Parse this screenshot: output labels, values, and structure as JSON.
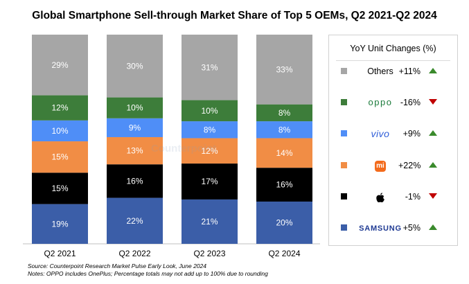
{
  "chart_data": {
    "type": "bar",
    "stacked": true,
    "title": "Global Smartphone Sell-through Market Share of Top 5 OEMs, Q2 2021-Q2 2024",
    "categories": [
      "Q2 2021",
      "Q2 2022",
      "Q2 2023",
      "Q2 2024"
    ],
    "series": [
      {
        "name": "Samsung",
        "color": "#3b5ea8",
        "values": [
          19,
          22,
          21,
          20
        ],
        "labels": [
          "19%",
          "22%",
          "21%",
          "20%"
        ]
      },
      {
        "name": "Apple",
        "color": "#000000",
        "values": [
          15,
          16,
          17,
          16
        ],
        "labels": [
          "15%",
          "16%",
          "17%",
          "16%"
        ]
      },
      {
        "name": "Xiaomi",
        "color": "#f18d45",
        "values": [
          15,
          13,
          12,
          14
        ],
        "labels": [
          "15%",
          "13%",
          "12%",
          "14%"
        ]
      },
      {
        "name": "vivo",
        "color": "#4f8ef7",
        "values": [
          10,
          9,
          8,
          8
        ],
        "labels": [
          "10%",
          "9%",
          "8%",
          "8%"
        ]
      },
      {
        "name": "OPPO",
        "color": "#3d7d3a",
        "values": [
          12,
          10,
          10,
          8
        ],
        "labels": [
          "12%",
          "10%",
          "10%",
          "8%"
        ]
      },
      {
        "name": "Others",
        "color": "#a6a6a6",
        "values": [
          29,
          30,
          31,
          33
        ],
        "labels": [
          "29%",
          "30%",
          "31%",
          "33%"
        ]
      }
    ],
    "ylim": [
      0,
      100
    ],
    "legend": {
      "title": "YoY Unit Changes (%)",
      "placement": "right",
      "entries": [
        {
          "name": "Others",
          "logo_text": "Others",
          "logo": "text",
          "change": "+11%",
          "direction": "up",
          "color": "#a6a6a6"
        },
        {
          "name": "OPPO",
          "logo_text": "oppo",
          "logo": "oppo",
          "change": "-16%",
          "direction": "down",
          "color": "#3d7d3a"
        },
        {
          "name": "vivo",
          "logo_text": "vivo",
          "logo": "vivo",
          "change": "+9%",
          "direction": "up",
          "color": "#4f8ef7"
        },
        {
          "name": "Xiaomi",
          "logo_text": "mi",
          "logo": "mi",
          "change": "+22%",
          "direction": "up",
          "color": "#f18d45"
        },
        {
          "name": "Apple",
          "logo_text": "",
          "logo": "apple",
          "change": "-1%",
          "direction": "down",
          "color": "#000000"
        },
        {
          "name": "Samsung",
          "logo_text": "SAMSUNG",
          "logo": "samsung",
          "change": "+5%",
          "direction": "up",
          "color": "#3b5ea8"
        }
      ]
    },
    "source": "Source: Counterpoint Research Market Pulse Early Look, June 2024",
    "notes": "Notes: OPPO includes OnePlus; Percentage totals may not add up to 100% due to rounding",
    "watermark": "Counterpoint"
  }
}
